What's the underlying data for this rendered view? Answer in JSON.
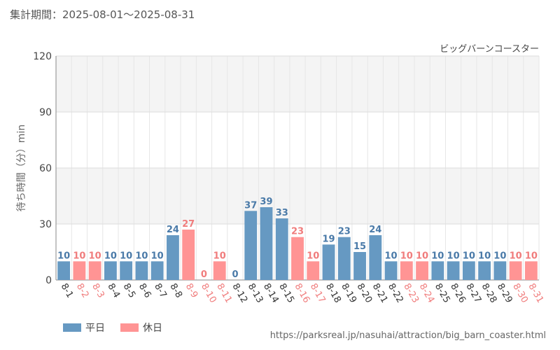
{
  "header": {
    "period": "集計期間：2025-08-01～2025-08-31"
  },
  "colors": {
    "weekday": "#6699c2",
    "holiday": "#ff9494",
    "weekday_text": "#4a7aa8",
    "holiday_text": "#f07c7c"
  },
  "chart_data": {
    "type": "bar",
    "title": "ビッグバーンコースター",
    "ylabel": "待ち時間（分）min",
    "xlabel": "",
    "ylim": [
      0,
      120
    ],
    "yticks": [
      0,
      30,
      60,
      90,
      120
    ],
    "grid": true,
    "legend_placement": "bottom-left",
    "categories": [
      "8-1",
      "8-2",
      "8-3",
      "8-4",
      "8-5",
      "8-6",
      "8-7",
      "8-8",
      "8-9",
      "8-10",
      "8-11",
      "8-12",
      "8-13",
      "8-14",
      "8-15",
      "8-16",
      "8-17",
      "8-18",
      "8-19",
      "8-20",
      "8-21",
      "8-22",
      "8-23",
      "8-24",
      "8-25",
      "8-26",
      "8-27",
      "8-28",
      "8-29",
      "8-30",
      "8-31"
    ],
    "values": [
      10,
      10,
      10,
      10,
      10,
      10,
      10,
      24,
      27,
      0,
      10,
      0,
      37,
      39,
      33,
      23,
      10,
      19,
      23,
      15,
      24,
      10,
      10,
      10,
      10,
      10,
      10,
      10,
      10,
      10,
      10
    ],
    "day_type": [
      "weekday",
      "holiday",
      "holiday",
      "weekday",
      "weekday",
      "weekday",
      "weekday",
      "weekday",
      "holiday",
      "holiday",
      "holiday",
      "weekday",
      "weekday",
      "weekday",
      "weekday",
      "holiday",
      "holiday",
      "weekday",
      "weekday",
      "weekday",
      "weekday",
      "weekday",
      "holiday",
      "holiday",
      "weekday",
      "weekday",
      "weekday",
      "weekday",
      "weekday",
      "holiday",
      "holiday"
    ],
    "series": [
      {
        "name": "平日",
        "key": "weekday"
      },
      {
        "name": "休日",
        "key": "holiday"
      }
    ]
  },
  "footer": {
    "source": "https://parksreal.jp/nasuhai/attraction/big_barn_coaster.html"
  }
}
